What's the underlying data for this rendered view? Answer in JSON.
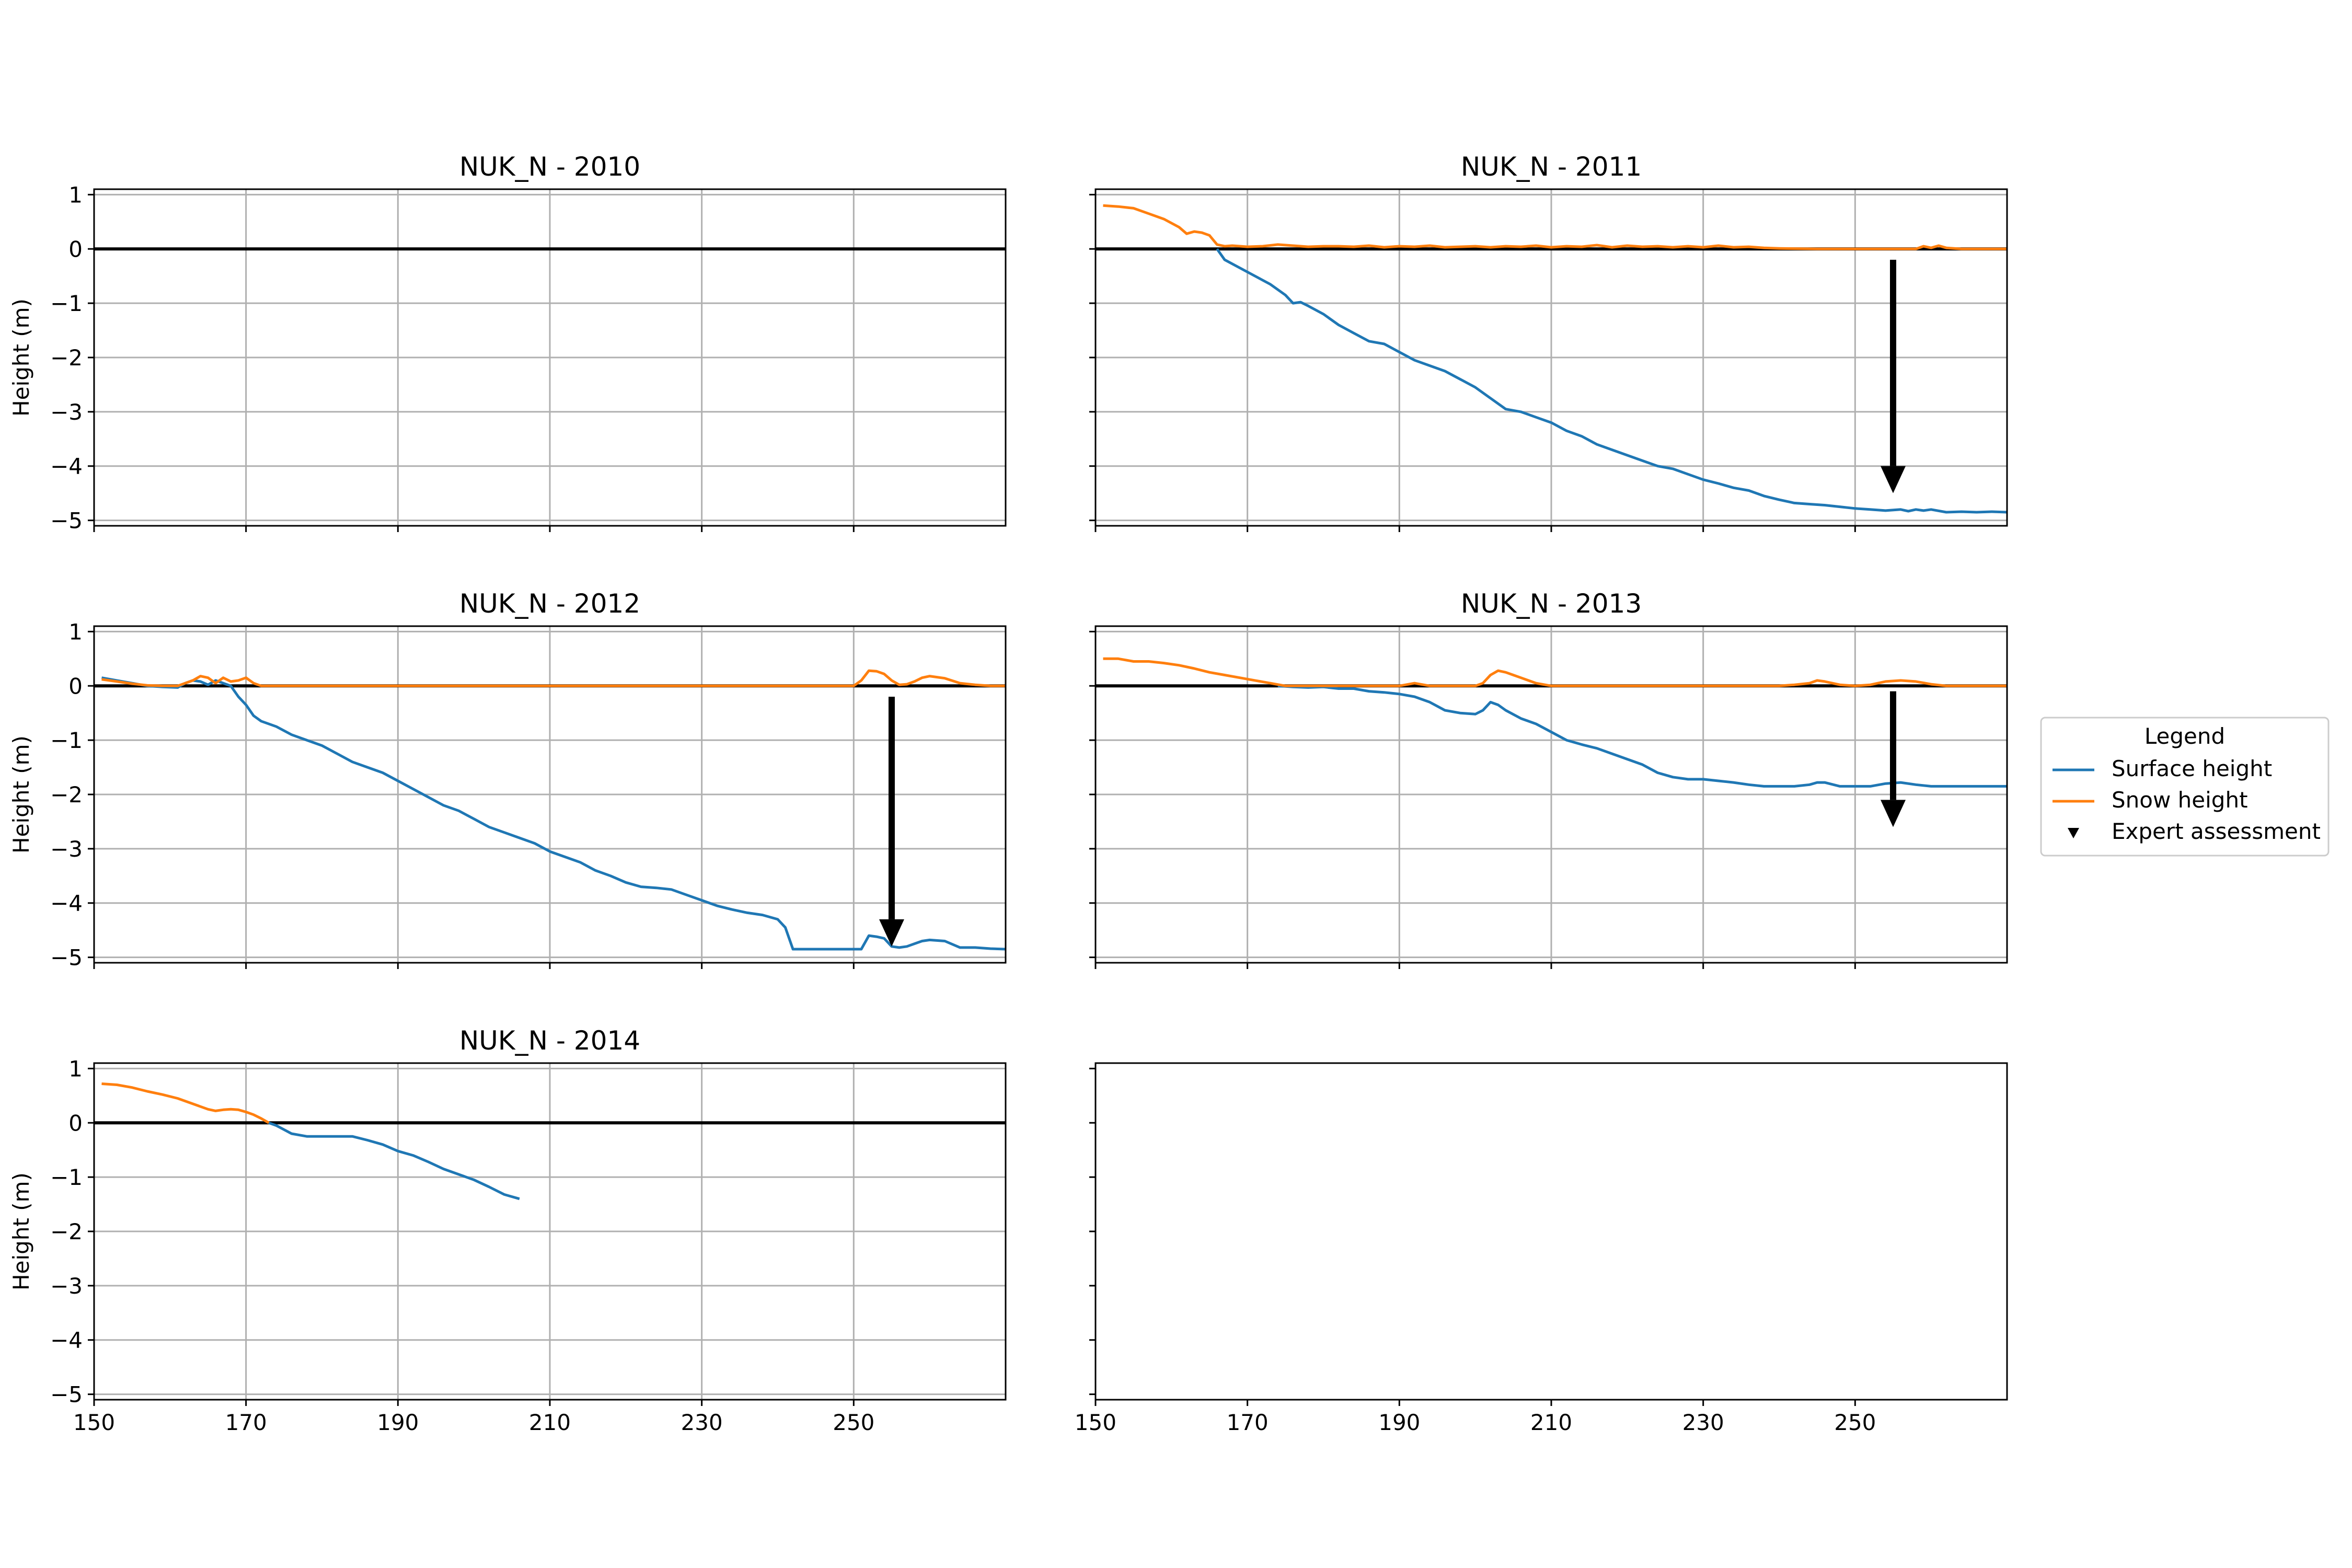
{
  "chart_data": [
    {
      "type": "line",
      "title": "NUK_N - 2010",
      "ylabel": "Height (m)",
      "xlim": [
        150,
        270
      ],
      "ylim": [
        -5.1,
        1.1
      ],
      "xticks": [
        150,
        170,
        190,
        210,
        230,
        250
      ],
      "yticks": [
        1,
        0,
        -1,
        -2,
        -3,
        -4,
        -5
      ],
      "show_xticklabels": false,
      "show_yticklabels": true,
      "grid": true,
      "zero_line": true,
      "series": [],
      "expert_assessment": null
    },
    {
      "type": "line",
      "title": "NUK_N - 2011",
      "ylabel": "",
      "xlim": [
        150,
        270
      ],
      "ylim": [
        -5.1,
        1.1
      ],
      "xticks": [
        150,
        170,
        190,
        210,
        230,
        250
      ],
      "yticks": [
        1,
        0,
        -1,
        -2,
        -3,
        -4,
        -5
      ],
      "show_xticklabels": false,
      "show_yticklabels": false,
      "grid": true,
      "zero_line": true,
      "series": [
        {
          "name": "Surface height",
          "color": "#1f77b4",
          "x": [
            166,
            167,
            169,
            171,
            173,
            175,
            176,
            177,
            178,
            180,
            182,
            184,
            186,
            188,
            190,
            192,
            194,
            196,
            198,
            200,
            202,
            204,
            206,
            208,
            210,
            212,
            214,
            216,
            218,
            220,
            222,
            224,
            226,
            228,
            230,
            232,
            234,
            236,
            238,
            240,
            242,
            244,
            246,
            248,
            250,
            252,
            254,
            256,
            257,
            258,
            259,
            260,
            262,
            264,
            266,
            268,
            270
          ],
          "y": [
            0,
            -0.2,
            -0.35,
            -0.5,
            -0.65,
            -0.85,
            -1.0,
            -0.98,
            -1.05,
            -1.2,
            -1.4,
            -1.55,
            -1.7,
            -1.75,
            -1.9,
            -2.05,
            -2.15,
            -2.25,
            -2.4,
            -2.55,
            -2.75,
            -2.95,
            -3.0,
            -3.1,
            -3.2,
            -3.35,
            -3.45,
            -3.6,
            -3.7,
            -3.8,
            -3.9,
            -4.0,
            -4.05,
            -4.15,
            -4.25,
            -4.32,
            -4.4,
            -4.45,
            -4.55,
            -4.62,
            -4.68,
            -4.7,
            -4.72,
            -4.75,
            -4.78,
            -4.8,
            -4.82,
            -4.8,
            -4.83,
            -4.8,
            -4.82,
            -4.8,
            -4.85,
            -4.84,
            -4.85,
            -4.84,
            -4.85
          ]
        },
        {
          "name": "Snow height",
          "color": "#ff7f0e",
          "x": [
            151,
            153,
            155,
            157,
            159,
            161,
            162,
            163,
            164,
            165,
            166,
            167,
            168,
            170,
            172,
            174,
            176,
            178,
            180,
            182,
            184,
            186,
            188,
            190,
            192,
            194,
            196,
            198,
            200,
            202,
            204,
            206,
            208,
            210,
            212,
            214,
            216,
            218,
            220,
            222,
            224,
            226,
            228,
            230,
            232,
            234,
            236,
            238,
            240,
            245,
            250,
            258,
            259,
            260,
            261,
            262,
            264,
            266,
            268,
            270
          ],
          "y": [
            0.8,
            0.78,
            0.75,
            0.65,
            0.55,
            0.4,
            0.28,
            0.32,
            0.3,
            0.25,
            0.08,
            0.05,
            0.06,
            0.04,
            0.05,
            0.08,
            0.06,
            0.04,
            0.05,
            0.05,
            0.04,
            0.06,
            0.03,
            0.05,
            0.04,
            0.06,
            0.03,
            0.04,
            0.05,
            0.03,
            0.05,
            0.04,
            0.06,
            0.03,
            0.05,
            0.04,
            0.07,
            0.03,
            0.06,
            0.04,
            0.05,
            0.03,
            0.05,
            0.03,
            0.06,
            0.03,
            0.04,
            0.02,
            0.01,
            0.0,
            0.0,
            0.0,
            0.05,
            0.02,
            0.06,
            0.02,
            0.0,
            0.0,
            0.0,
            0.0
          ]
        }
      ],
      "expert_assessment": {
        "x": 255,
        "y_start": -0.2,
        "y_end": -4.5
      }
    },
    {
      "type": "line",
      "title": "NUK_N - 2012",
      "ylabel": "Height (m)",
      "xlim": [
        150,
        270
      ],
      "ylim": [
        -5.1,
        1.1
      ],
      "xticks": [
        150,
        170,
        190,
        210,
        230,
        250
      ],
      "yticks": [
        1,
        0,
        -1,
        -2,
        -3,
        -4,
        -5
      ],
      "show_xticklabels": false,
      "show_yticklabels": true,
      "grid": true,
      "zero_line": true,
      "series": [
        {
          "name": "Surface height",
          "color": "#1f77b4",
          "x": [
            151,
            153,
            155,
            157,
            159,
            161,
            162,
            163,
            164,
            165,
            166,
            167,
            168,
            169,
            170,
            171,
            172,
            174,
            176,
            178,
            180,
            182,
            184,
            186,
            188,
            190,
            192,
            194,
            196,
            198,
            200,
            202,
            204,
            206,
            208,
            210,
            212,
            214,
            216,
            218,
            220,
            222,
            224,
            226,
            228,
            230,
            232,
            234,
            236,
            238,
            240,
            241,
            242,
            244,
            246,
            248,
            250,
            251,
            252,
            253,
            254,
            255,
            256,
            257,
            258,
            259,
            260,
            262,
            264,
            266,
            268,
            270
          ],
          "y": [
            0.15,
            0.1,
            0.05,
            0.0,
            -0.02,
            -0.03,
            0.05,
            0.1,
            0.08,
            0.02,
            0.1,
            0.05,
            0.0,
            -0.2,
            -0.35,
            -0.55,
            -0.65,
            -0.75,
            -0.9,
            -1.0,
            -1.1,
            -1.25,
            -1.4,
            -1.5,
            -1.6,
            -1.75,
            -1.9,
            -2.05,
            -2.2,
            -2.3,
            -2.45,
            -2.6,
            -2.7,
            -2.8,
            -2.9,
            -3.05,
            -3.15,
            -3.25,
            -3.4,
            -3.5,
            -3.62,
            -3.7,
            -3.72,
            -3.75,
            -3.85,
            -3.95,
            -4.05,
            -4.12,
            -4.18,
            -4.22,
            -4.3,
            -4.45,
            -4.85,
            -4.85,
            -4.85,
            -4.85,
            -4.85,
            -4.85,
            -4.6,
            -4.62,
            -4.65,
            -4.8,
            -4.82,
            -4.8,
            -4.75,
            -4.7,
            -4.68,
            -4.7,
            -4.82,
            -4.82,
            -4.84,
            -4.85
          ]
        },
        {
          "name": "Snow height",
          "color": "#ff7f0e",
          "x": [
            151,
            153,
            155,
            157,
            159,
            161,
            163,
            164,
            165,
            166,
            167,
            168,
            169,
            170,
            171,
            172,
            180,
            200,
            220,
            240,
            250,
            251,
            252,
            253,
            254,
            255,
            256,
            257,
            258,
            259,
            260,
            262,
            264,
            266,
            268,
            270
          ],
          "y": [
            0.12,
            0.08,
            0.04,
            0.01,
            0.0,
            0.0,
            0.1,
            0.18,
            0.15,
            0.05,
            0.15,
            0.08,
            0.1,
            0.15,
            0.05,
            0.0,
            0.0,
            0.0,
            0.0,
            0.0,
            0.0,
            0.1,
            0.28,
            0.27,
            0.22,
            0.1,
            0.02,
            0.03,
            0.08,
            0.15,
            0.18,
            0.14,
            0.05,
            0.02,
            0.0,
            0.0
          ]
        }
      ],
      "expert_assessment": {
        "x": 255,
        "y_start": -0.2,
        "y_end": -4.8
      }
    },
    {
      "type": "line",
      "title": "NUK_N - 2013",
      "ylabel": "",
      "xlim": [
        150,
        270
      ],
      "ylim": [
        -5.1,
        1.1
      ],
      "xticks": [
        150,
        170,
        190,
        210,
        230,
        250
      ],
      "yticks": [
        1,
        0,
        -1,
        -2,
        -3,
        -4,
        -5
      ],
      "show_xticklabels": false,
      "show_yticklabels": false,
      "grid": true,
      "zero_line": true,
      "series": [
        {
          "name": "Surface height",
          "color": "#1f77b4",
          "x": [
            174,
            176,
            178,
            180,
            182,
            184,
            186,
            188,
            190,
            192,
            194,
            196,
            198,
            200,
            201,
            202,
            203,
            204,
            206,
            208,
            210,
            212,
            214,
            216,
            218,
            220,
            222,
            224,
            226,
            228,
            230,
            232,
            234,
            236,
            238,
            240,
            242,
            244,
            245,
            246,
            248,
            250,
            252,
            254,
            256,
            258,
            260,
            262,
            264,
            266,
            268,
            270
          ],
          "y": [
            0.0,
            -0.02,
            -0.03,
            -0.02,
            -0.05,
            -0.05,
            -0.1,
            -0.12,
            -0.15,
            -0.2,
            -0.3,
            -0.45,
            -0.5,
            -0.52,
            -0.45,
            -0.3,
            -0.35,
            -0.45,
            -0.6,
            -0.7,
            -0.85,
            -1.0,
            -1.08,
            -1.15,
            -1.25,
            -1.35,
            -1.45,
            -1.6,
            -1.68,
            -1.72,
            -1.72,
            -1.75,
            -1.78,
            -1.82,
            -1.85,
            -1.85,
            -1.85,
            -1.82,
            -1.78,
            -1.78,
            -1.85,
            -1.85,
            -1.85,
            -1.8,
            -1.78,
            -1.82,
            -1.85,
            -1.85,
            -1.85,
            -1.85,
            -1.85,
            -1.85
          ]
        },
        {
          "name": "Snow height",
          "color": "#ff7f0e",
          "x": [
            151,
            153,
            155,
            157,
            159,
            161,
            163,
            165,
            167,
            169,
            171,
            173,
            175,
            190,
            192,
            194,
            200,
            201,
            202,
            203,
            204,
            205,
            206,
            208,
            210,
            240,
            242,
            244,
            245,
            246,
            248,
            250,
            252,
            254,
            256,
            258,
            260,
            262,
            270
          ],
          "y": [
            0.5,
            0.5,
            0.45,
            0.45,
            0.42,
            0.38,
            0.32,
            0.25,
            0.2,
            0.15,
            0.1,
            0.05,
            0.0,
            0.0,
            0.05,
            0.0,
            0.0,
            0.05,
            0.2,
            0.28,
            0.25,
            0.2,
            0.15,
            0.05,
            0.0,
            0.0,
            0.02,
            0.05,
            0.1,
            0.08,
            0.02,
            0.0,
            0.02,
            0.08,
            0.1,
            0.08,
            0.03,
            0.0,
            0.0
          ]
        }
      ],
      "expert_assessment": {
        "x": 255,
        "y_start": -0.1,
        "y_end": -2.6
      }
    },
    {
      "type": "line",
      "title": "NUK_N - 2014",
      "ylabel": "Height (m)",
      "xlim": [
        150,
        270
      ],
      "ylim": [
        -5.1,
        1.1
      ],
      "xticks": [
        150,
        170,
        190,
        210,
        230,
        250
      ],
      "yticks": [
        1,
        0,
        -1,
        -2,
        -3,
        -4,
        -5
      ],
      "show_xticklabels": true,
      "show_yticklabels": true,
      "grid": true,
      "zero_line": true,
      "series": [
        {
          "name": "Surface height",
          "color": "#1f77b4",
          "x": [
            173,
            174,
            176,
            178,
            180,
            182,
            184,
            186,
            188,
            190,
            192,
            194,
            196,
            198,
            200,
            202,
            204,
            206
          ],
          "y": [
            0.0,
            -0.05,
            -0.2,
            -0.25,
            -0.25,
            -0.25,
            -0.25,
            -0.32,
            -0.4,
            -0.52,
            -0.6,
            -0.72,
            -0.85,
            -0.95,
            -1.05,
            -1.18,
            -1.32,
            -1.4
          ]
        },
        {
          "name": "Snow height",
          "color": "#ff7f0e",
          "x": [
            151,
            153,
            155,
            157,
            159,
            161,
            163,
            165,
            166,
            167,
            168,
            169,
            170,
            171,
            172,
            173
          ],
          "y": [
            0.72,
            0.7,
            0.65,
            0.58,
            0.52,
            0.45,
            0.35,
            0.25,
            0.22,
            0.24,
            0.25,
            0.24,
            0.2,
            0.15,
            0.08,
            0.0
          ]
        }
      ],
      "expert_assessment": null
    },
    {
      "type": "line",
      "title": "",
      "ylabel": "",
      "xlim": [
        150,
        270
      ],
      "ylim": [
        -5.1,
        1.1
      ],
      "xticks": [
        150,
        170,
        190,
        210,
        230,
        250
      ],
      "yticks": [
        1,
        0,
        -1,
        -2,
        -3,
        -4,
        -5
      ],
      "show_xticklabels": true,
      "show_yticklabels": false,
      "grid": false,
      "zero_line": false,
      "series": [],
      "expert_assessment": null
    }
  ],
  "legend": {
    "title": "Legend",
    "entries": [
      {
        "label": "Surface height",
        "color": "#1f77b4",
        "marker": "line"
      },
      {
        "label": "Snow height",
        "color": "#ff7f0e",
        "marker": "line"
      },
      {
        "label": "Expert assessment",
        "color": "#000000",
        "marker": "triangle-down"
      }
    ],
    "placement": "right"
  }
}
